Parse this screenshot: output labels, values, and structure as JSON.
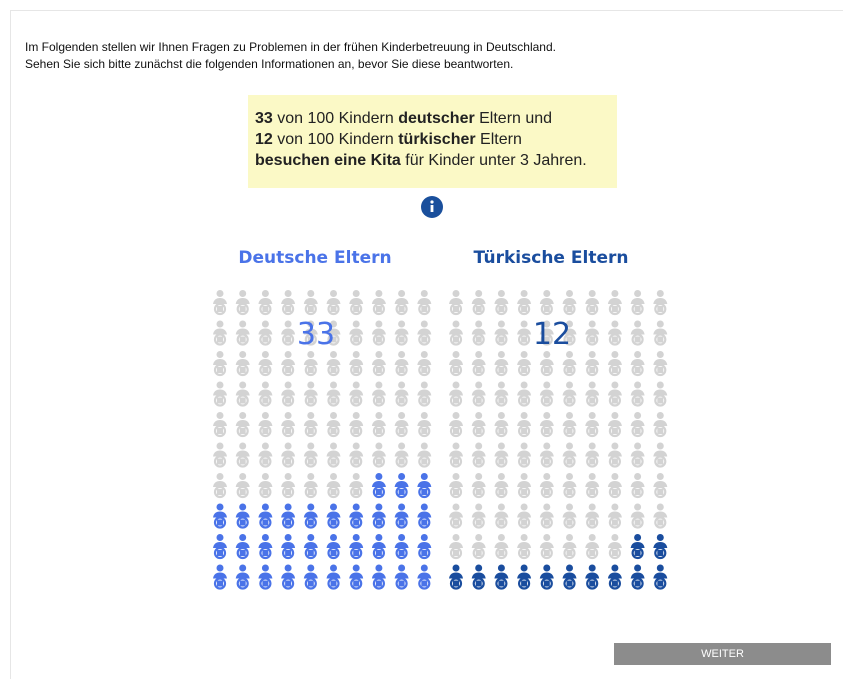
{
  "intro": [
    "Im Folgenden stellen wir Ihnen Fragen zu Problemen in der frühen Kinderbetreuung in Deutschland.",
    "Sehen Sie sich bitte zunächst die folgenden Informationen an, bevor Sie diese beantworten."
  ],
  "infobox": {
    "lines": [
      [
        {
          "text": "33",
          "bold": true
        },
        {
          "text": " von 100 Kindern ",
          "bold": false
        },
        {
          "text": "deutscher",
          "bold": true
        },
        {
          "text": " Eltern und",
          "bold": false
        }
      ],
      [
        {
          "text": "12",
          "bold": true
        },
        {
          "text": " von 100 Kindern ",
          "bold": false
        },
        {
          "text": "türkischer",
          "bold": true
        },
        {
          "text": " Eltern",
          "bold": false
        }
      ],
      [
        {
          "text": "besuchen eine Kita",
          "bold": true
        },
        {
          "text": " für Kinder unter 3 Jahren.",
          "bold": false
        }
      ]
    ]
  },
  "panels": [
    {
      "title": "Deutsche Eltern",
      "value": 33,
      "total": 100,
      "color": "#4a73e8"
    },
    {
      "title": "Türkische Eltern",
      "value": 12,
      "total": 100,
      "color": "#1a4d9e"
    }
  ],
  "button": "WEITER"
}
